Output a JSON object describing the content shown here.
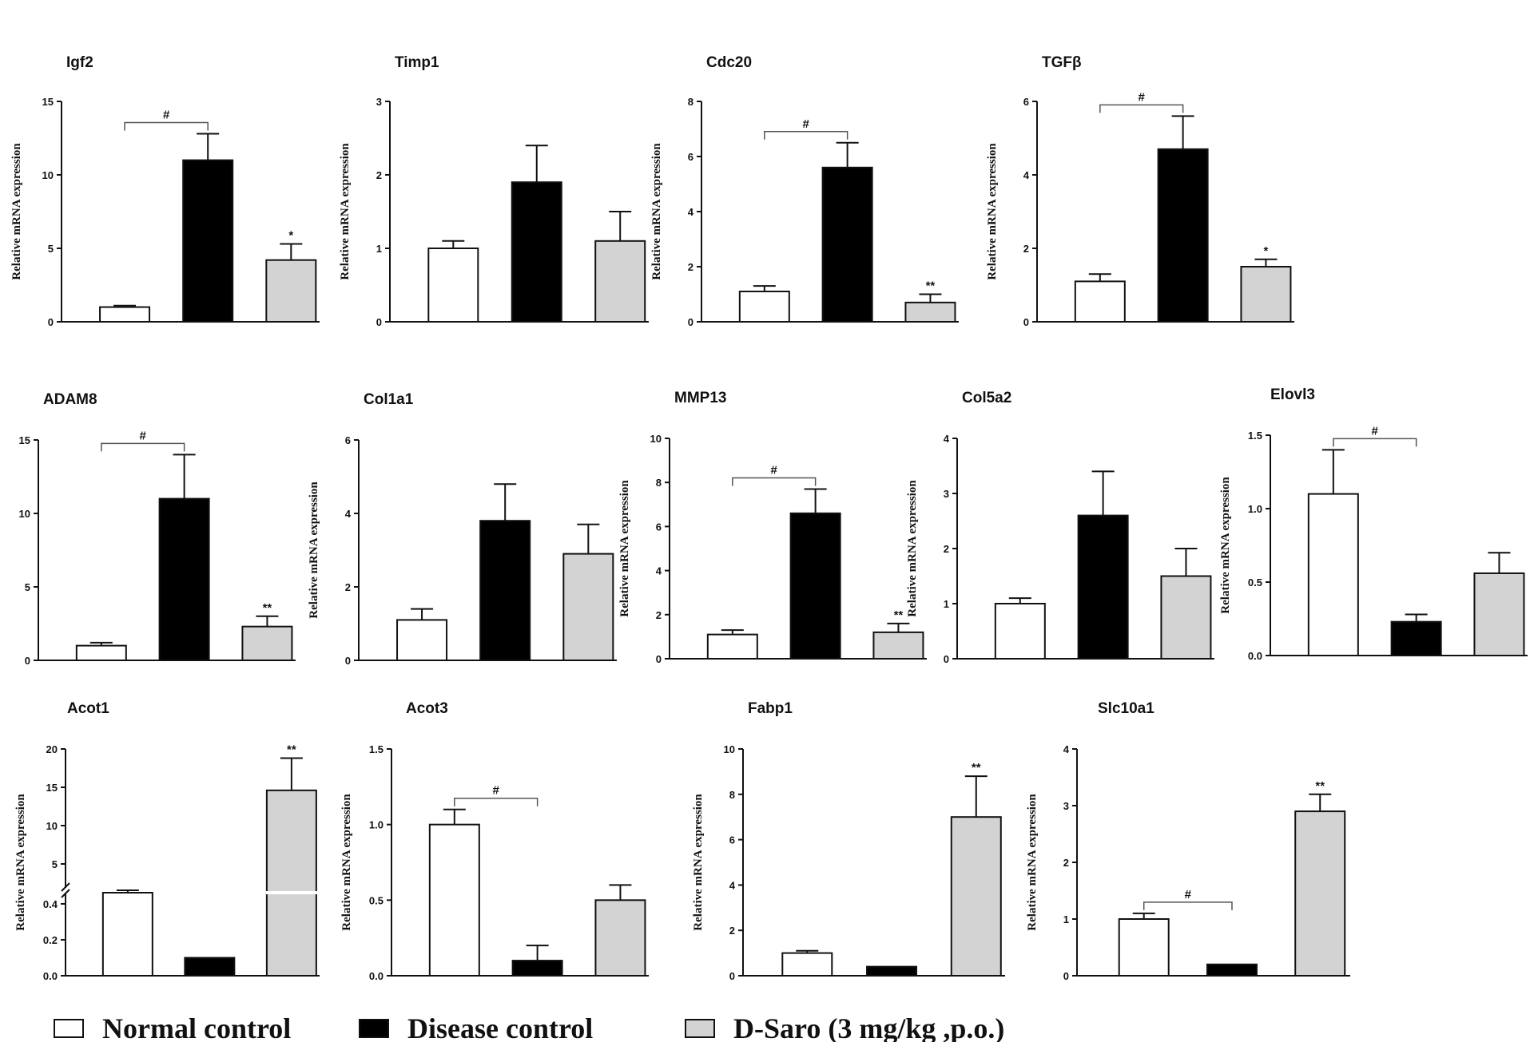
{
  "legend": [
    {
      "label": "Normal control",
      "color": "#ffffff"
    },
    {
      "label": "Disease control",
      "color": "#000000"
    },
    {
      "label": "D-Saro (3 mg/kg ,p.o.)",
      "color": "#d3d3d3"
    }
  ],
  "chart_data": [
    {
      "type": "bar",
      "title": "Igf2",
      "ylabel": "Relative mRNA expression",
      "ylim": [
        0,
        15
      ],
      "yticks": [
        "0",
        "5",
        "10",
        "15"
      ],
      "values": [
        1.0,
        11.0,
        4.2
      ],
      "errors": [
        0.1,
        1.8,
        1.1
      ],
      "marks": [
        "",
        "",
        "*"
      ],
      "bracket": {
        "from": 0,
        "to": 1,
        "label": "#"
      }
    },
    {
      "type": "bar",
      "title": "Timp1",
      "ylabel": "Relative mRNA expression",
      "ylim": [
        0,
        3
      ],
      "yticks": [
        "0",
        "1",
        "2",
        "3"
      ],
      "values": [
        1.0,
        1.9,
        1.1
      ],
      "errors": [
        0.1,
        0.5,
        0.4
      ],
      "marks": [
        "",
        "",
        ""
      ],
      "bracket": null
    },
    {
      "type": "bar",
      "title": "Cdc20",
      "ylabel": "Relative mRNA expression",
      "ylim": [
        0,
        8
      ],
      "yticks": [
        "0",
        "2",
        "4",
        "6",
        "8"
      ],
      "values": [
        1.1,
        5.6,
        0.7
      ],
      "errors": [
        0.2,
        0.9,
        0.3
      ],
      "marks": [
        "",
        "",
        "**"
      ],
      "bracket": {
        "from": 0,
        "to": 1,
        "label": "#"
      }
    },
    {
      "type": "bar",
      "title": "TGFβ",
      "ylabel": "Relative mRNA expression",
      "ylim": [
        0,
        6
      ],
      "yticks": [
        "0",
        "2",
        "4",
        "6"
      ],
      "values": [
        1.1,
        4.7,
        1.5
      ],
      "errors": [
        0.2,
        0.9,
        0.2
      ],
      "marks": [
        "",
        "",
        "*"
      ],
      "bracket": {
        "from": 0,
        "to": 1,
        "label": "#"
      }
    },
    {
      "type": "bar",
      "title": "ADAM8",
      "ylabel": "Relative mRNA expression",
      "ylim": [
        0,
        15
      ],
      "yticks": [
        "0",
        "5",
        "10",
        "15"
      ],
      "values": [
        1.0,
        11.0,
        2.3
      ],
      "errors": [
        0.2,
        3.0,
        0.7
      ],
      "marks": [
        "",
        "",
        "**"
      ],
      "bracket": {
        "from": 0,
        "to": 1,
        "label": "#"
      }
    },
    {
      "type": "bar",
      "title": "Col1a1",
      "ylabel": "Relative mRNA expression",
      "ylim": [
        0,
        6
      ],
      "yticks": [
        "0",
        "2",
        "4",
        "6"
      ],
      "values": [
        1.1,
        3.8,
        2.9
      ],
      "errors": [
        0.3,
        1.0,
        0.8
      ],
      "marks": [
        "",
        "",
        ""
      ],
      "bracket": null
    },
    {
      "type": "bar",
      "title": "MMP13",
      "ylabel": "Relative mRNA expression",
      "ylim": [
        0,
        10
      ],
      "yticks": [
        "0",
        "2",
        "4",
        "6",
        "8",
        "10"
      ],
      "values": [
        1.1,
        6.6,
        1.2
      ],
      "errors": [
        0.2,
        1.1,
        0.4
      ],
      "marks": [
        "",
        "",
        "**"
      ],
      "bracket": {
        "from": 0,
        "to": 1,
        "label": "#"
      }
    },
    {
      "type": "bar",
      "title": "Col5a2",
      "ylabel": "Relative mRNA expression",
      "ylim": [
        0,
        4
      ],
      "yticks": [
        "0",
        "1",
        "2",
        "3",
        "4"
      ],
      "values": [
        1.0,
        2.6,
        1.5
      ],
      "errors": [
        0.1,
        0.8,
        0.5
      ],
      "marks": [
        "",
        "",
        ""
      ],
      "bracket": null
    },
    {
      "type": "bar",
      "title": "Elovl3",
      "ylabel": "Relative mRNA expression",
      "ylim": [
        0,
        1.5
      ],
      "yticks": [
        "0.0",
        "0.5",
        "1.0",
        "1.5"
      ],
      "values": [
        1.1,
        0.23,
        0.56
      ],
      "errors": [
        0.3,
        0.05,
        0.14
      ],
      "marks": [
        "",
        "",
        ""
      ],
      "bracket": {
        "from": 0,
        "to": 1,
        "label": "#"
      }
    },
    {
      "type": "bar",
      "title": "Acot1",
      "ylabel": "Relative mRNA expression",
      "broken_axis": true,
      "yticks": [
        "0.0",
        "0.2",
        "0.4",
        "5",
        "10",
        "15",
        "20"
      ],
      "values": [
        1.0,
        0.1,
        14.6
      ],
      "errors": [
        0.05,
        0.0,
        4.2
      ],
      "marks": [
        "",
        "",
        "**"
      ],
      "bracket": null
    },
    {
      "type": "bar",
      "title": "Acot3",
      "ylabel": "Relative mRNA expression",
      "ylim": [
        0,
        1.5
      ],
      "yticks": [
        "0.0",
        "0.5",
        "1.0",
        "1.5"
      ],
      "values": [
        1.0,
        0.1,
        0.5
      ],
      "errors": [
        0.1,
        0.1,
        0.1
      ],
      "marks": [
        "",
        "",
        ""
      ],
      "bracket": {
        "from": 0,
        "to": 1,
        "label": "#"
      }
    },
    {
      "type": "bar",
      "title": "Fabp1",
      "ylabel": "Relative mRNA expression",
      "ylim": [
        0,
        10
      ],
      "yticks": [
        "0",
        "2",
        "4",
        "6",
        "8",
        "10"
      ],
      "values": [
        1.0,
        0.4,
        7.0
      ],
      "errors": [
        0.1,
        0.0,
        1.8
      ],
      "marks": [
        "",
        "",
        "**"
      ],
      "bracket": null
    },
    {
      "type": "bar",
      "title": "Slc10a1",
      "ylabel": "Relative mRNA expression",
      "ylim": [
        0,
        4
      ],
      "yticks": [
        "0",
        "1",
        "2",
        "3",
        "4"
      ],
      "values": [
        1.0,
        0.2,
        2.9
      ],
      "errors": [
        0.1,
        0.0,
        0.3
      ],
      "marks": [
        "",
        "",
        "**"
      ],
      "bracket": {
        "from": 0,
        "to": 1,
        "label": "#"
      }
    }
  ]
}
